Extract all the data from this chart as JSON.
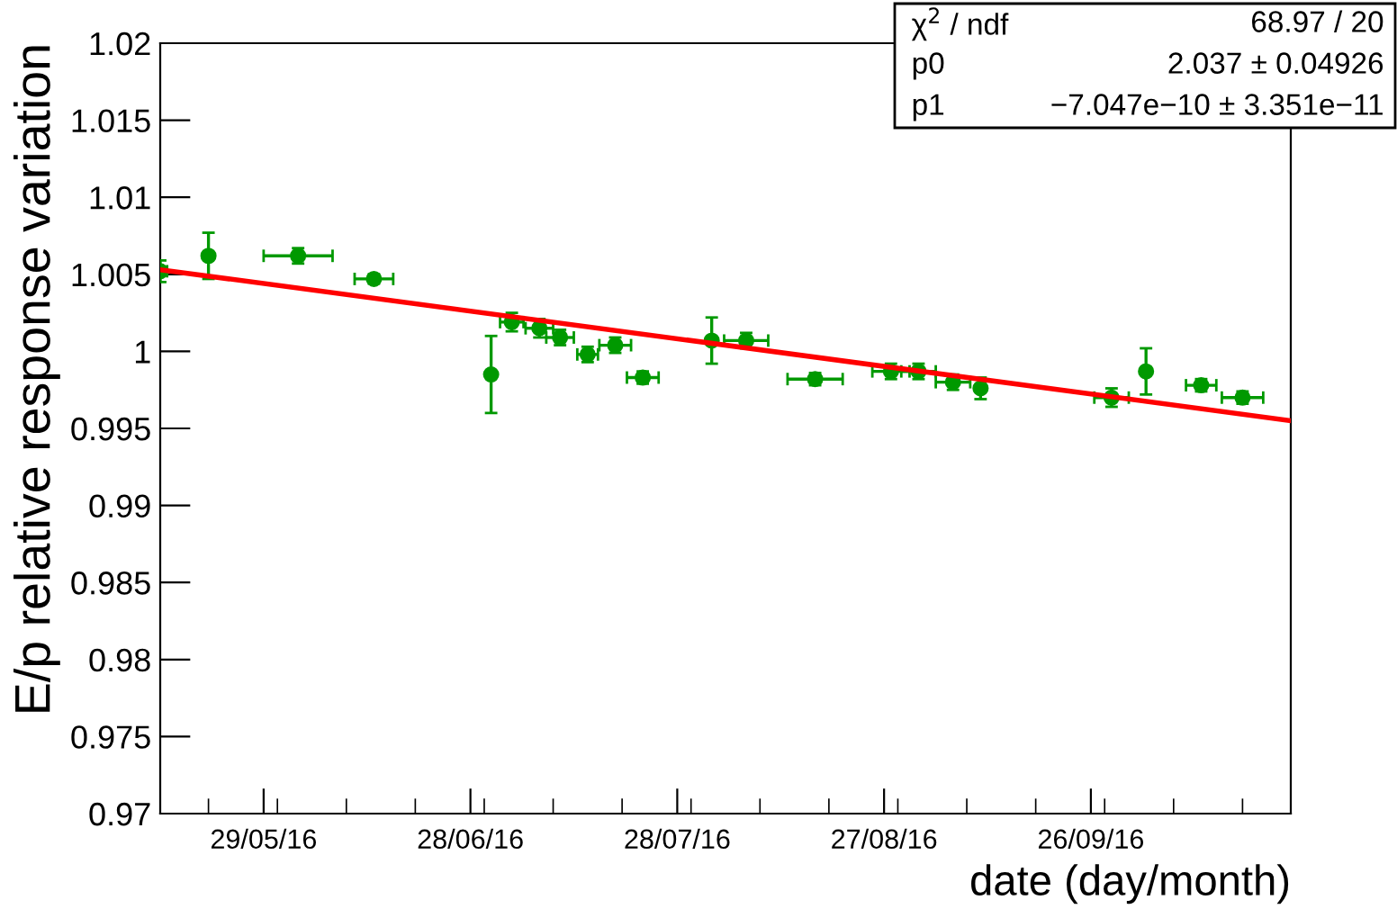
{
  "chart_data": {
    "type": "scatter",
    "ylabel": "E/p relative response variation",
    "xlabel": "date (day/month)",
    "annotations": [
      "χ$^{2}$ / ndf",
      "68.97 / 20",
      "p0",
      "2.037 ± 0.04926",
      "p1",
      "−7.047e−10 ± 3.351e−11"
    ],
    "xlim": [
      "2016-05-14",
      "2016-10-25"
    ],
    "xticks": [
      {
        "value": "2016-05-29",
        "label": "29/05/16"
      },
      {
        "value": "2016-06-28",
        "label": "28/06/16"
      },
      {
        "value": "2016-07-28",
        "label": "28/07/16"
      },
      {
        "value": "2016-08-27",
        "label": "27/08/16"
      },
      {
        "value": "2016-09-26",
        "label": "26/09/16"
      }
    ],
    "ylim": [
      0.97,
      1.02
    ],
    "yticks": [
      0.97,
      0.975,
      0.98,
      0.985,
      0.99,
      0.995,
      1,
      1.005,
      1.01,
      1.015,
      1.02
    ],
    "grid": false,
    "series": [
      {
        "type": "scatter",
        "color": "#009900",
        "marker": "circle",
        "x": [
          "2016-05-14",
          "2016-05-21",
          "2016-06-03",
          "2016-06-14",
          "2016-07-01",
          "2016-07-04",
          "2016-07-08",
          "2016-07-11",
          "2016-07-15",
          "2016-07-19",
          "2016-07-23",
          "2016-08-02",
          "2016-08-07",
          "2016-08-17",
          "2016-08-28",
          "2016-09-01",
          "2016-09-06",
          "2016-09-10",
          "2016-09-29",
          "2016-10-04",
          "2016-10-12",
          "2016-10-18"
        ],
        "values": [
          1.0052,
          1.0062,
          1.0062,
          1.0047,
          0.9985,
          1.0019,
          1.0015,
          1.0009,
          0.9998,
          1.0004,
          0.9983,
          1.0007,
          1.0007,
          0.9982,
          0.9987,
          0.9987,
          0.998,
          0.9976,
          0.997,
          0.9987,
          0.9978,
          0.997
        ],
        "errors": [
          0.0007,
          0.0015,
          0.0005,
          0.0003,
          0.0025,
          0.0006,
          0.0006,
          0.0005,
          0.0005,
          0.0005,
          0.0004,
          0.0015,
          0.0005,
          0.0004,
          0.0005,
          0.0005,
          0.0005,
          0.0007,
          0.0006,
          0.0015,
          0.0004,
          0.0004
        ],
        "xerrors": [
          1,
          null,
          5,
          2.8,
          null,
          1.7,
          2,
          2,
          1.5,
          2.3,
          2.3,
          null,
          3.2,
          4,
          2.7,
          2.5,
          2.5,
          null,
          2.5,
          null,
          2.2,
          3
        ]
      },
      {
        "type": "line",
        "color": "#ff0000",
        "x": [
          "2016-05-14",
          "2016-10-25"
        ],
        "values": [
          1.0053,
          0.9955
        ]
      }
    ]
  }
}
